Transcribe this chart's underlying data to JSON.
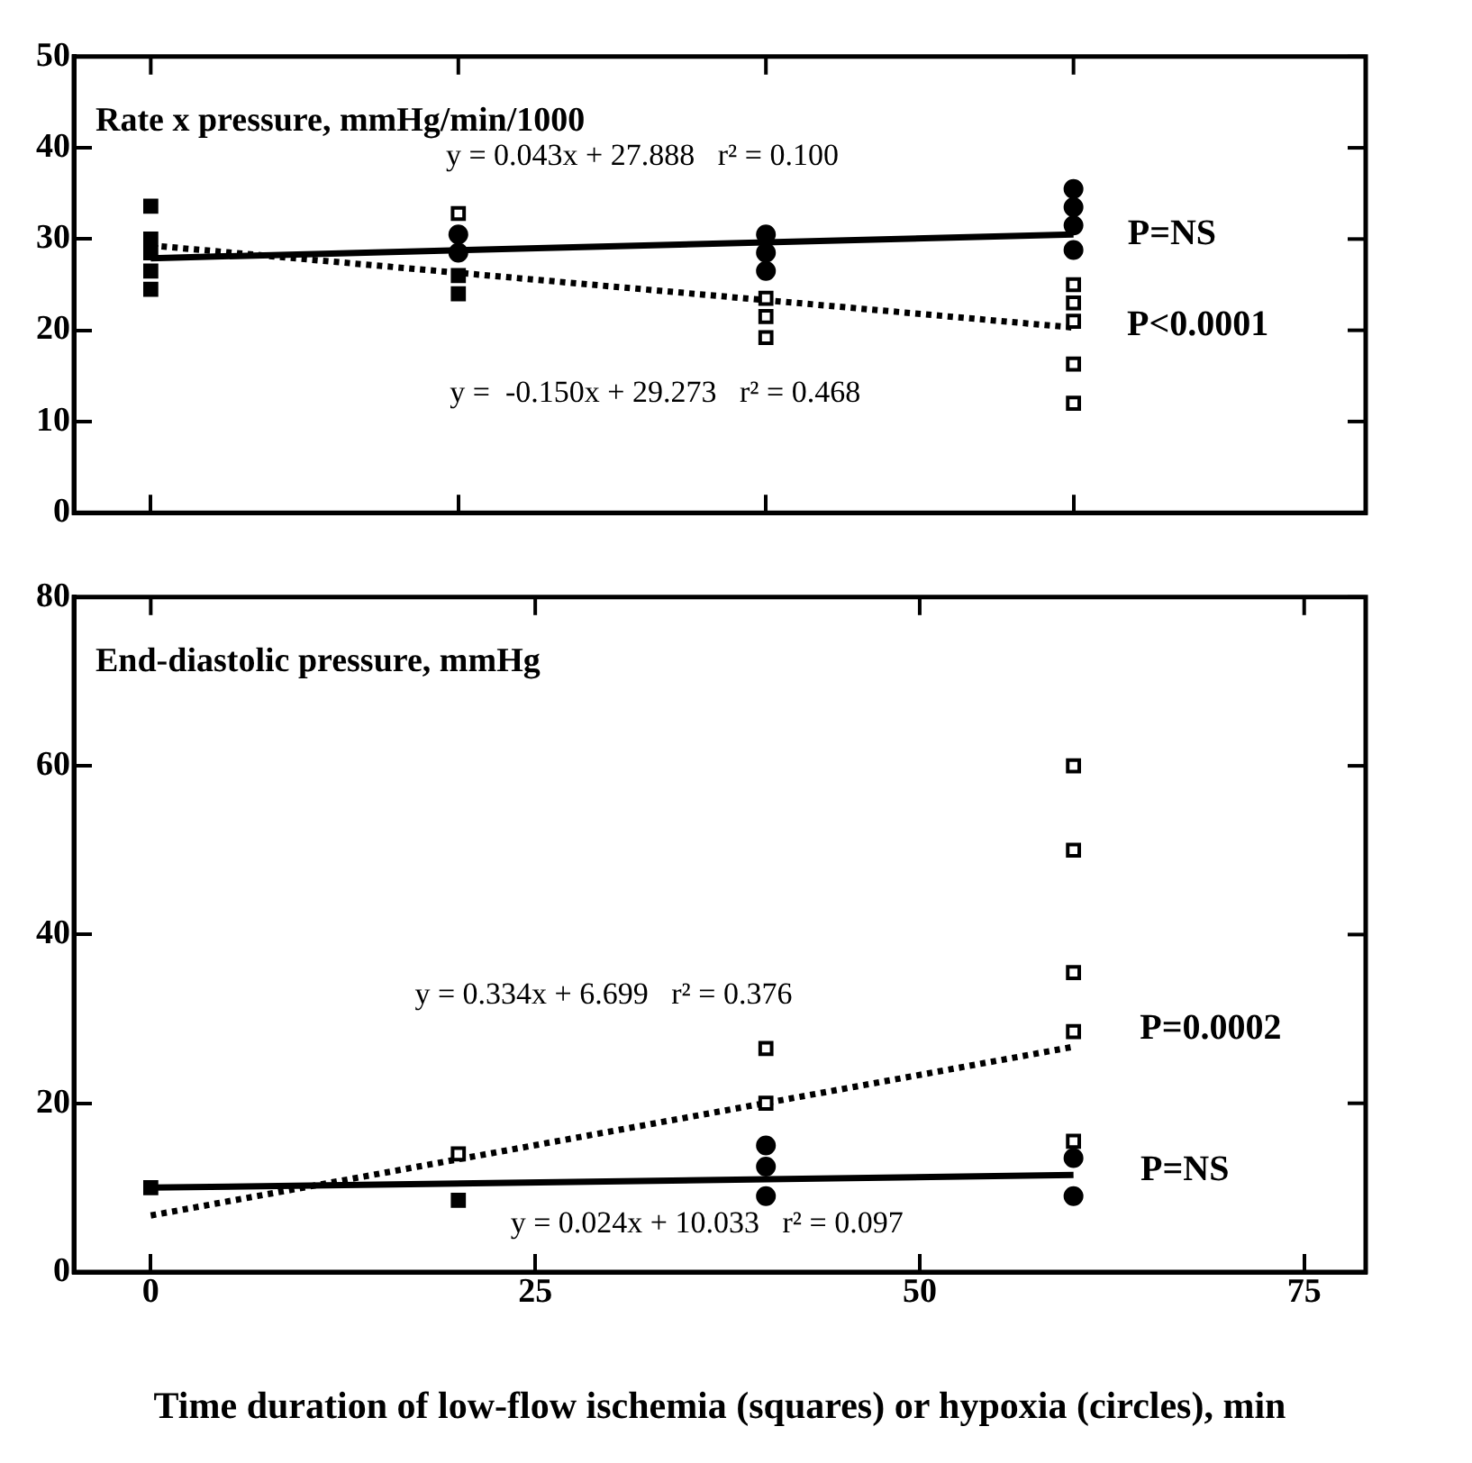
{
  "chart_data": [
    {
      "type": "scatter",
      "title": "Rate x pressure, mmHg/min/1000",
      "xlim": [
        -5,
        79
      ],
      "xticks": [
        {
          "value": 0,
          "label": null
        },
        {
          "value": 20,
          "label": null
        },
        {
          "value": 40,
          "label": null
        },
        {
          "value": 60,
          "label": null
        }
      ],
      "ylim": [
        0,
        50
      ],
      "yticks": [
        0,
        10,
        20,
        30,
        40,
        50
      ],
      "tick_labels": "y",
      "grid": false,
      "legend": false,
      "series": [
        {
          "marker": "square",
          "color": "#000000",
          "x": [
            0,
            0,
            0,
            0,
            0,
            20,
            20
          ],
          "values": [
            33.6,
            24.5,
            26.5,
            28.5,
            30,
            24,
            26
          ]
        },
        {
          "marker": "square",
          "color": "#ffffff",
          "x": [
            20,
            40,
            40,
            40,
            60,
            60,
            60,
            60,
            60
          ],
          "values": [
            32.8,
            23.5,
            21.5,
            19.2,
            25,
            23,
            21,
            16.3,
            12
          ]
        },
        {
          "marker": "circle",
          "color": "#000000",
          "x": [
            20,
            20,
            40,
            40,
            40,
            60,
            60,
            60,
            60
          ],
          "values": [
            30.5,
            28.5,
            30.5,
            28.5,
            26.5,
            35.5,
            33.5,
            31.5,
            28.8
          ]
        },
        {
          "type": "line",
          "marker": "none",
          "line_style": "solid",
          "color": "#000000",
          "x": [
            0,
            60
          ],
          "values": [
            27.9,
            30.5
          ]
        },
        {
          "type": "line",
          "marker": "none",
          "line_style": "dotted",
          "color": "#000000",
          "x": [
            0,
            60
          ],
          "values": [
            29.3,
            20.3
          ]
        }
      ],
      "annotations": [
        "y = 0.043x + 27.888   r² = 0.100",
        "y =  -0.150x + 29.273   r² = 0.468",
        "P=NS",
        "P<0.0001"
      ]
    },
    {
      "type": "scatter",
      "title": "End-diastolic pressure, mmHg",
      "xlabel": "Time duration of low-flow ischemia (squares) or hypoxia (circles), min",
      "xlim": [
        -5,
        79
      ],
      "xticks": [
        0,
        25,
        50,
        75
      ],
      "ylim": [
        0,
        80
      ],
      "yticks": [
        0,
        20,
        40,
        60,
        80
      ],
      "grid": false,
      "legend": false,
      "series": [
        {
          "marker": "square",
          "color": "#000000",
          "x": [
            0,
            20
          ],
          "values": [
            10,
            8.5
          ]
        },
        {
          "marker": "square",
          "color": "#ffffff",
          "x": [
            20,
            40,
            40,
            60,
            60,
            60,
            60,
            60
          ],
          "values": [
            14,
            26.5,
            20,
            60,
            50,
            35.5,
            28.5,
            15.5
          ]
        },
        {
          "marker": "circle",
          "color": "#000000",
          "x": [
            40,
            40,
            40,
            60,
            60
          ],
          "values": [
            9,
            12.5,
            15,
            9,
            13.5
          ]
        },
        {
          "type": "line",
          "marker": "none",
          "line_style": "solid",
          "color": "#000000",
          "x": [
            0,
            60
          ],
          "values": [
            10.0,
            11.5
          ]
        },
        {
          "type": "line",
          "marker": "none",
          "line_style": "dotted",
          "color": "#000000",
          "x": [
            0,
            60
          ],
          "values": [
            6.7,
            26.7
          ]
        }
      ],
      "annotations": [
        "y = 0.334x + 6.699   r² = 0.376",
        "y = 0.024x + 10.033   r² = 0.097",
        "P=0.0002",
        "P=NS"
      ]
    }
  ]
}
